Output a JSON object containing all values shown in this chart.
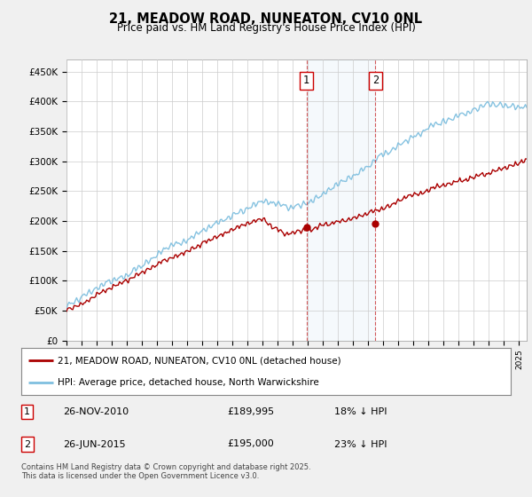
{
  "title": "21, MEADOW ROAD, NUNEATON, CV10 0NL",
  "subtitle": "Price paid vs. HM Land Registry's House Price Index (HPI)",
  "ylabel_ticks": [
    "£0",
    "£50K",
    "£100K",
    "£150K",
    "£200K",
    "£250K",
    "£300K",
    "£350K",
    "£400K",
    "£450K"
  ],
  "ytick_values": [
    0,
    50000,
    100000,
    150000,
    200000,
    250000,
    300000,
    350000,
    400000,
    450000
  ],
  "ylim": [
    0,
    470000
  ],
  "xlim_start": 1995.0,
  "xlim_end": 2025.5,
  "hpi_color": "#7fbfdf",
  "price_color": "#aa0000",
  "transaction1_x": 2010.9,
  "transaction1_y": 189995,
  "transaction2_x": 2015.48,
  "transaction2_y": 195000,
  "vline1_x": 2010.9,
  "vline2_x": 2015.48,
  "legend_label1": "21, MEADOW ROAD, NUNEATON, CV10 0NL (detached house)",
  "legend_label2": "HPI: Average price, detached house, North Warwickshire",
  "table_row1": [
    "1",
    "26-NOV-2010",
    "£189,995",
    "18% ↓ HPI"
  ],
  "table_row2": [
    "2",
    "26-JUN-2015",
    "£195,000",
    "23% ↓ HPI"
  ],
  "footer": "Contains HM Land Registry data © Crown copyright and database right 2025.\nThis data is licensed under the Open Government Licence v3.0.",
  "background_color": "#f0f0f0",
  "plot_bg_color": "#ffffff",
  "grid_color": "#cccccc"
}
